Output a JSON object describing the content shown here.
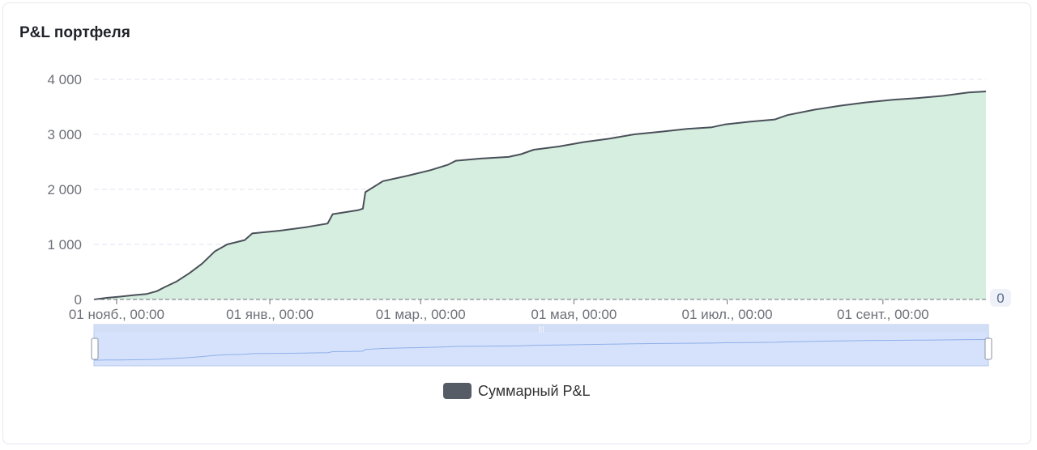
{
  "card": {
    "title": "P&L портфеля"
  },
  "chart_data": {
    "type": "area",
    "title": "P&L портфеля",
    "series": [
      {
        "name": "Суммарный P&L",
        "x": [
          "2023-10-23",
          "2023-10-28",
          "2023-11-02",
          "2023-11-08",
          "2023-11-13",
          "2023-11-17",
          "2023-11-20",
          "2023-11-25",
          "2023-11-30",
          "2023-12-05",
          "2023-12-10",
          "2023-12-15",
          "2023-12-22",
          "2023-12-25",
          "2024-01-05",
          "2024-01-15",
          "2024-01-24",
          "2024-01-26",
          "2024-02-05",
          "2024-02-07",
          "2024-02-08",
          "2024-02-15",
          "2024-02-25",
          "2024-03-05",
          "2024-03-12",
          "2024-03-15",
          "2024-03-25",
          "2024-04-05",
          "2024-04-10",
          "2024-04-15",
          "2024-04-25",
          "2024-05-05",
          "2024-05-15",
          "2024-05-25",
          "2024-06-05",
          "2024-06-15",
          "2024-06-25",
          "2024-06-30",
          "2024-07-10",
          "2024-07-20",
          "2024-07-25",
          "2024-08-05",
          "2024-08-15",
          "2024-08-25",
          "2024-09-05",
          "2024-09-15",
          "2024-09-25",
          "2024-10-05",
          "2024-10-12"
        ],
        "y": [
          0,
          30,
          50,
          80,
          100,
          150,
          220,
          330,
          480,
          650,
          870,
          1000,
          1080,
          1200,
          1250,
          1310,
          1380,
          1550,
          1620,
          1650,
          1950,
          2150,
          2250,
          2350,
          2450,
          2520,
          2560,
          2590,
          2640,
          2720,
          2780,
          2860,
          2920,
          3000,
          3050,
          3100,
          3130,
          3180,
          3230,
          3270,
          3350,
          3450,
          3520,
          3580,
          3630,
          3660,
          3700,
          3760,
          3780
        ]
      }
    ],
    "x_ticks": [
      "01 нояб., 00:00",
      "01 янв., 00:00",
      "01 мар., 00:00",
      "01 мая, 00:00",
      "01 июл., 00:00",
      "01 сент., 00:00"
    ],
    "y_ticks": [
      "0",
      "1 000",
      "2 000",
      "3 000",
      "4 000"
    ],
    "ylim": [
      0,
      4000
    ],
    "xlim": [
      "2023-10-23",
      "2024-10-12"
    ],
    "end_marker": "0",
    "grid": true,
    "legend": "bottom-center",
    "colors": {
      "line": "#4a5059",
      "area": "#d6eedf",
      "zoom_fill": "#d6e2fb",
      "zoom_line": "#8fb0ea"
    }
  },
  "legend": {
    "label": "Суммарный P&L"
  }
}
